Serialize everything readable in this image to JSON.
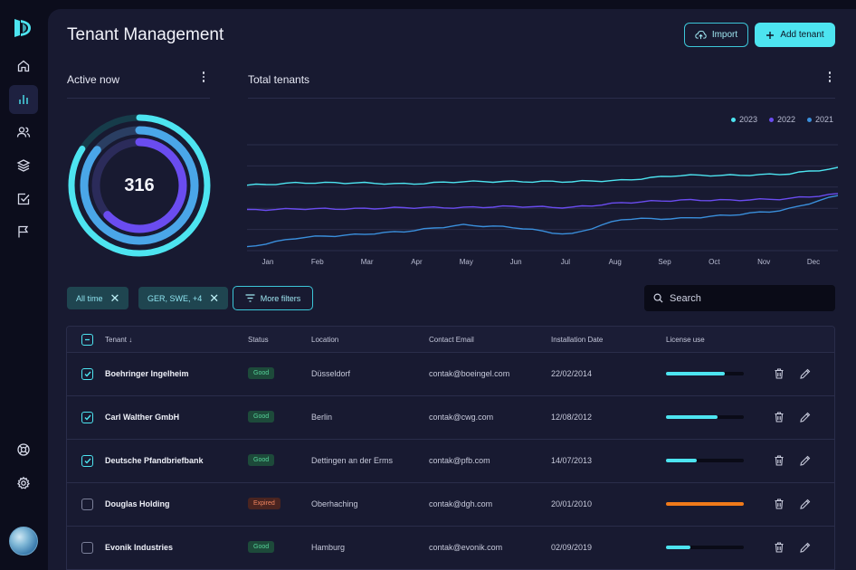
{
  "page": {
    "title": "Tenant Management"
  },
  "header": {
    "import_label": "Import",
    "add_label": "Add tenant"
  },
  "active_now": {
    "title": "Active now",
    "value": "316"
  },
  "total_tenants": {
    "title": "Total tenants"
  },
  "chart_data": {
    "type": "line",
    "categories": [
      "Jan",
      "Feb",
      "Mar",
      "Apr",
      "May",
      "Jun",
      "Jul",
      "Aug",
      "Sep",
      "Oct",
      "Nov",
      "Dec"
    ],
    "series": [
      {
        "name": "2023",
        "color": "#4de4f0",
        "values": [
          0.6,
          0.62,
          0.62,
          0.61,
          0.63,
          0.63,
          0.63,
          0.64,
          0.68,
          0.68,
          0.69,
          0.74
        ]
      },
      {
        "name": "2022",
        "color": "#6a4cf0",
        "values": [
          0.4,
          0.41,
          0.41,
          0.42,
          0.42,
          0.43,
          0.42,
          0.46,
          0.48,
          0.48,
          0.49,
          0.53
        ]
      },
      {
        "name": "2021",
        "color": "#3a8fdc",
        "values": [
          0.1,
          0.18,
          0.2,
          0.23,
          0.28,
          0.26,
          0.2,
          0.33,
          0.33,
          0.36,
          0.4,
          0.52
        ]
      }
    ],
    "ylim": [
      0,
      1
    ],
    "grid": true,
    "legend": "top-right"
  },
  "filters": {
    "chips": [
      {
        "label": "All time"
      },
      {
        "label": "GER, SWE, +4"
      }
    ],
    "more_label": "More filters",
    "search_placeholder": "Search"
  },
  "table": {
    "columns": [
      "Tenant",
      "Status",
      "Location",
      "Contact Email",
      "Installation Date",
      "License use"
    ],
    "rows": [
      {
        "name": "Boehringer Ingelheim",
        "status": "Good",
        "status_type": "good",
        "location": "Düsseldorf",
        "email": "contak@boeingel.com",
        "date": "22/02/2014",
        "license": 0.75,
        "license_color": "#4de4f0",
        "checked": true
      },
      {
        "name": "Carl Walther GmbH",
        "status": "Good",
        "status_type": "good",
        "location": "Berlin",
        "email": "contak@cwg.com",
        "date": "12/08/2012",
        "license": 0.66,
        "license_color": "#4de4f0",
        "checked": true
      },
      {
        "name": "Deutsche Pfandbriefbank",
        "status": "Good",
        "status_type": "good",
        "location": "Dettingen an der Erms",
        "email": "contak@pfb.com",
        "date": "14/07/2013",
        "license": 0.4,
        "license_color": "#4de4f0",
        "checked": true
      },
      {
        "name": "Douglas Holding",
        "status": "Expired",
        "status_type": "expired",
        "location": "Oberhaching",
        "email": "contak@dgh.com",
        "date": "20/01/2010",
        "license": 1.0,
        "license_color": "#f07a1a",
        "checked": false
      },
      {
        "name": "Evonik Industries",
        "status": "Good",
        "status_type": "good",
        "location": "Hamburg",
        "email": "contak@evonik.com",
        "date": "02/09/2019",
        "license": 0.31,
        "license_color": "#4de4f0",
        "checked": false
      }
    ]
  }
}
